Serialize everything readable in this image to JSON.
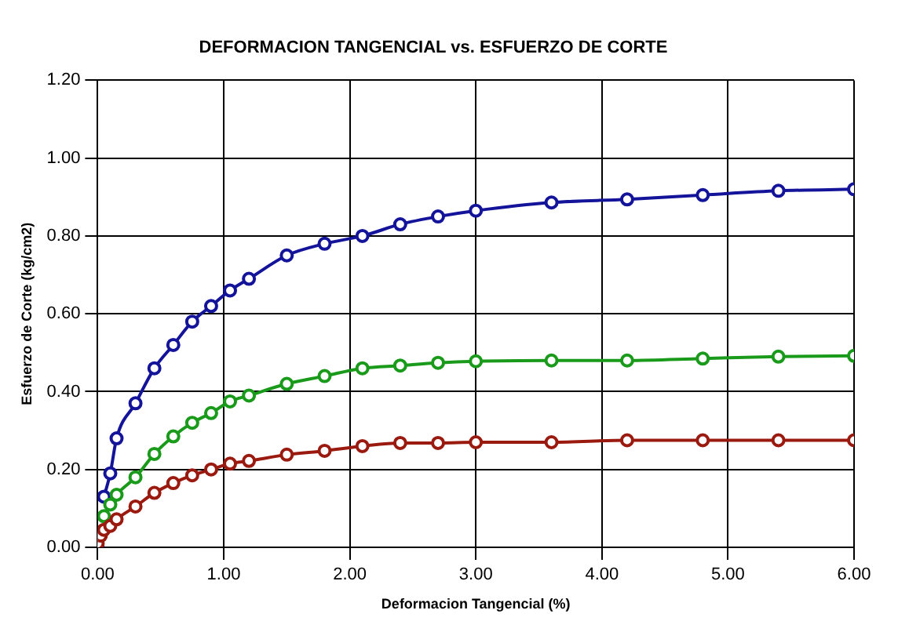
{
  "chart_data": {
    "type": "line",
    "title": "DEFORMACION TANGENCIAL vs. ESFUERZO DE CORTE",
    "xlabel": "Deformacion Tangencial (%)",
    "ylabel": "Esfuerzo de Corte (kg/cm2)",
    "x": [
      0,
      0.025,
      0.05,
      0.1,
      0.15,
      0.3,
      0.45,
      0.6,
      0.75,
      0.9,
      1.05,
      1.2,
      1.5,
      1.8,
      2.1,
      2.4,
      2.7,
      3.0,
      3.6,
      4.2,
      4.8,
      5.4,
      6.0
    ],
    "series": [
      {
        "color": "#9a1a10",
        "values": [
          0.01,
          0.03,
          0.045,
          0.055,
          0.072,
          0.105,
          0.14,
          0.165,
          0.185,
          0.2,
          0.215,
          0.222,
          0.238,
          0.248,
          0.26,
          0.268,
          0.268,
          0.27,
          0.27,
          0.275,
          0.275,
          0.275,
          0.275
        ]
      },
      {
        "color": "#1a9a1a",
        "values": [
          null,
          null,
          0.08,
          0.11,
          0.135,
          0.18,
          0.24,
          0.285,
          0.32,
          0.345,
          0.375,
          0.39,
          0.42,
          0.44,
          0.46,
          0.467,
          0.474,
          0.478,
          0.48,
          0.48,
          0.485,
          0.49,
          0.492
        ]
      },
      {
        "color": "#14149a",
        "values": [
          0.0,
          null,
          0.13,
          0.19,
          0.28,
          0.37,
          0.46,
          0.52,
          0.58,
          0.62,
          0.66,
          0.69,
          0.75,
          0.78,
          0.8,
          0.83,
          0.85,
          0.865,
          0.886,
          0.894,
          0.905,
          0.916,
          0.92
        ]
      }
    ],
    "xlim": [
      0,
      6
    ],
    "xticks": [
      {
        "value": 0,
        "label": "0.00"
      },
      {
        "value": 1,
        "label": "1.00"
      },
      {
        "value": 2,
        "label": "2.00"
      },
      {
        "value": 3,
        "label": "3.00"
      },
      {
        "value": 4,
        "label": "4.00"
      },
      {
        "value": 5,
        "label": "5.00"
      },
      {
        "value": 6,
        "label": "6.00"
      }
    ],
    "ylim": [
      0,
      1.2
    ],
    "yticks": [
      {
        "value": 0,
        "label": "0.00"
      },
      {
        "value": 0.2,
        "label": "0.20"
      },
      {
        "value": 0.4,
        "label": "0.40"
      },
      {
        "value": 0.6,
        "label": "0.60"
      },
      {
        "value": 0.8,
        "label": "0.80"
      },
      {
        "value": 1,
        "label": "1.00"
      },
      {
        "value": 1.2,
        "label": "1.20"
      }
    ],
    "grid": true,
    "marker": "circle",
    "line_style": "solid"
  }
}
